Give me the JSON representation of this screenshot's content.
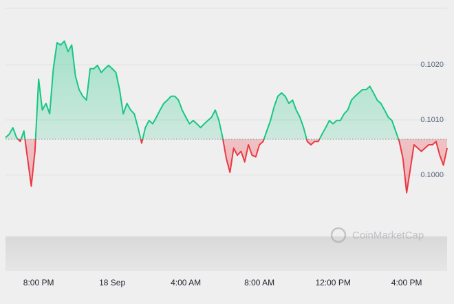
{
  "chart_data": {
    "type": "line",
    "watermark": "CoinMarketCap",
    "categories": [
      null,
      null,
      null,
      null,
      null,
      null,
      null,
      null,
      null,
      "8:00 PM",
      null,
      null,
      null,
      null,
      null,
      null,
      null,
      null,
      null,
      null,
      null,
      null,
      null,
      null,
      null,
      null,
      null,
      null,
      null,
      "18 Sep",
      null,
      null,
      null,
      null,
      null,
      null,
      null,
      null,
      null,
      null,
      null,
      null,
      null,
      null,
      null,
      null,
      null,
      null,
      null,
      "4:00 AM",
      null,
      null,
      null,
      null,
      null,
      null,
      null,
      null,
      null,
      null,
      null,
      null,
      null,
      null,
      null,
      null,
      null,
      null,
      null,
      "8:00 AM",
      null,
      null,
      null,
      null,
      null,
      null,
      null,
      null,
      null,
      null,
      null,
      null,
      null,
      null,
      null,
      null,
      null,
      null,
      null,
      "12:00 PM",
      null,
      null,
      null,
      null,
      null,
      null,
      null,
      null,
      null,
      null,
      null,
      null,
      null,
      null,
      null,
      null,
      null,
      null,
      null,
      "4:00 PM",
      null,
      null,
      null,
      null,
      null,
      null,
      null,
      null,
      null,
      null,
      null
    ],
    "values": [
      0.10068,
      0.10074,
      0.10086,
      0.10068,
      0.10061,
      0.1008,
      0.1003,
      0.0998,
      0.10043,
      0.10174,
      0.10118,
      0.1013,
      0.10111,
      0.10193,
      0.1024,
      0.10236,
      0.10243,
      0.10224,
      0.10236,
      0.1018,
      0.10155,
      0.10143,
      0.10136,
      0.10193,
      0.10193,
      0.10199,
      0.10186,
      0.10193,
      0.10199,
      0.10193,
      0.10186,
      0.10155,
      0.10111,
      0.1013,
      0.10118,
      0.10111,
      0.10086,
      0.10058,
      0.10086,
      0.10099,
      0.10093,
      0.10105,
      0.10118,
      0.1013,
      0.10136,
      0.10143,
      0.10143,
      0.10136,
      0.10118,
      0.10105,
      0.10093,
      0.10099,
      0.10093,
      0.10086,
      0.10093,
      0.10099,
      0.10105,
      0.10118,
      0.10099,
      0.10068,
      0.1003,
      0.10005,
      0.10049,
      0.10036,
      0.10043,
      0.10024,
      0.10055,
      0.10036,
      0.10033,
      0.10055,
      0.10061,
      0.1008,
      0.10099,
      0.10124,
      0.10143,
      0.10149,
      0.10143,
      0.1013,
      0.10136,
      0.10118,
      0.10105,
      0.10086,
      0.10061,
      0.10055,
      0.10061,
      0.10061,
      0.10074,
      0.10086,
      0.10099,
      0.10093,
      0.10099,
      0.10099,
      0.10111,
      0.10118,
      0.10136,
      0.10143,
      0.10149,
      0.10155,
      0.10155,
      0.10161,
      0.10149,
      0.10136,
      0.1013,
      0.10118,
      0.10105,
      0.10099,
      0.1008,
      0.10061,
      0.1003,
      0.09968,
      0.10011,
      0.10055,
      0.10049,
      0.10043,
      0.10049,
      0.10055,
      0.10055,
      0.10061,
      0.10036,
      0.10018,
      0.10049
    ],
    "baseline": 0.10065,
    "up_color": "#16c784",
    "down_color": "#ea3943",
    "ylim": [
      0.099,
      0.103
    ],
    "yticks": [
      {
        "value": 0.1,
        "label": "0.1000"
      },
      {
        "value": 0.101,
        "label": "0.1010"
      },
      {
        "value": 0.102,
        "label": "0.1020"
      }
    ],
    "grid": true
  }
}
